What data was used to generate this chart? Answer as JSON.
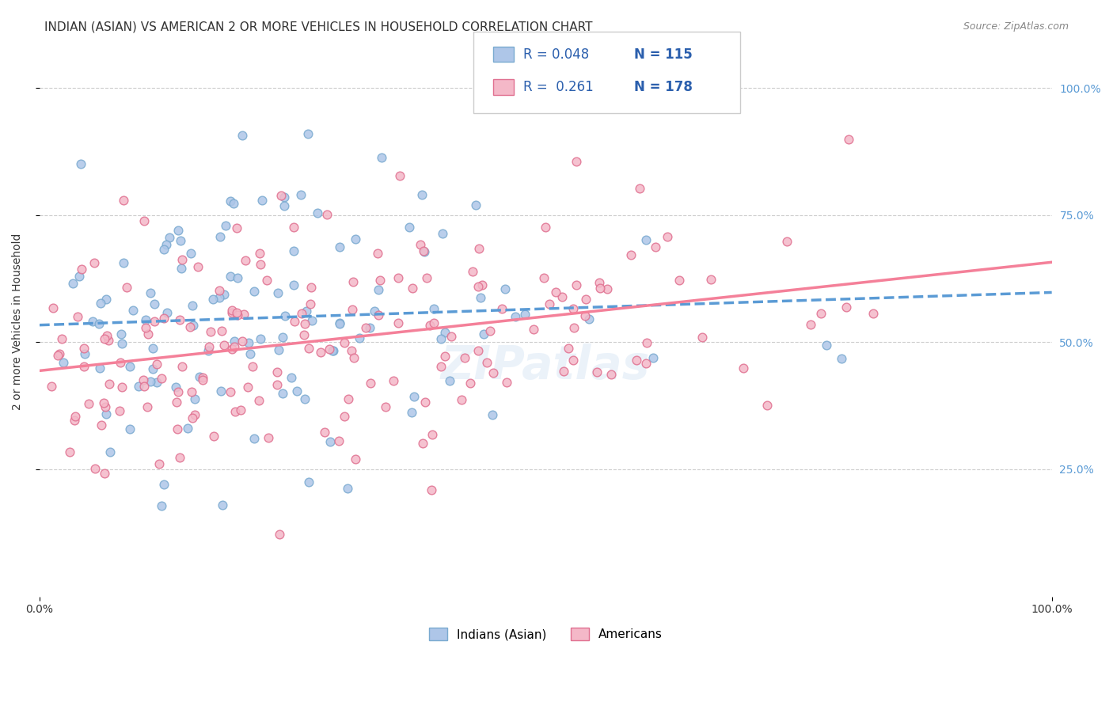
{
  "title": "INDIAN (ASIAN) VS AMERICAN 2 OR MORE VEHICLES IN HOUSEHOLD CORRELATION CHART",
  "source": "Source: ZipAtlas.com",
  "ylabel": "2 or more Vehicles in Household",
  "xlabel": "",
  "watermark": "ZIPatlas",
  "legend_blue_r": "R = 0.048",
  "legend_blue_n": "N = 115",
  "legend_pink_r": "R =  0.261",
  "legend_pink_n": "N = 178",
  "legend_label_blue": "Indians (Asian)",
  "legend_label_pink": "Americans",
  "xlim": [
    0.0,
    1.0
  ],
  "ylim": [
    0.0,
    1.0
  ],
  "xtick_labels": [
    "0.0%",
    "100.0%"
  ],
  "ytick_labels": [
    "25.0%",
    "50.0%",
    "75.0%",
    "100.0%"
  ],
  "ytick_positions": [
    0.25,
    0.5,
    0.75,
    1.0
  ],
  "title_color": "#333333",
  "blue_scatter_color": "#aec6e8",
  "pink_scatter_color": "#f4b8c8",
  "blue_line_color": "#5b9bd5",
  "pink_line_color": "#f48099",
  "blue_line_style": "--",
  "pink_line_style": "-",
  "blue_r": 0.048,
  "pink_r": 0.261,
  "blue_n": 115,
  "pink_n": 178,
  "grid_color": "#cccccc",
  "grid_style": "--",
  "background_color": "#ffffff",
  "scatter_size": 60,
  "scatter_alpha": 0.85,
  "scatter_linewidth": 1.0,
  "scatter_edge_blue": "#7aaad0",
  "scatter_edge_pink": "#e07090",
  "title_fontsize": 11,
  "source_fontsize": 9,
  "axis_label_fontsize": 10,
  "tick_fontsize": 10,
  "watermark_fontsize": 42,
  "watermark_alpha": 0.12,
  "watermark_color": "#5b9bd5",
  "right_ytick_color_blue": "#5b9bd5",
  "right_ytick_color_pink": "#f48099"
}
